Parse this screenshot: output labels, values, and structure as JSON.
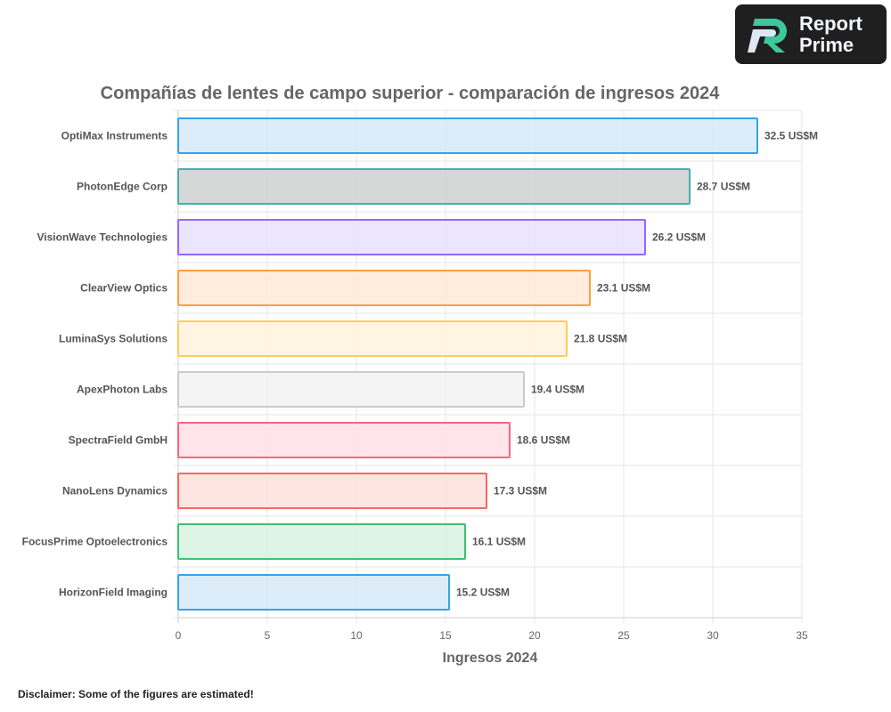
{
  "logo": {
    "line1": "Report",
    "line2": "Prime"
  },
  "disclaimer": "Disclaimer: Some of the figures are estimated!",
  "chart_data": {
    "type": "bar",
    "orientation": "horizontal",
    "title": "Compañías de lentes de campo superior - comparación de ingresos 2024",
    "xlabel": "Ingresos 2024",
    "ylabel": "",
    "xlim": [
      0,
      35
    ],
    "xticks": [
      0,
      5,
      10,
      15,
      20,
      25,
      30,
      35
    ],
    "grid": true,
    "value_suffix": " US$M",
    "categories": [
      "OptiMax Instruments",
      "PhotonEdge Corp",
      "VisionWave Technologies",
      "ClearView Optics",
      "LuminaSys Solutions",
      "ApexPhoton Labs",
      "SpectraField GmbH",
      "NanoLens Dynamics",
      "FocusPrime Optoelectronics",
      "HorizonField Imaging"
    ],
    "values": [
      32.5,
      28.7,
      26.2,
      23.1,
      21.8,
      19.4,
      18.6,
      17.3,
      16.1,
      15.2
    ],
    "data_labels": [
      "32.5 US$M",
      "28.7 US$M",
      "26.2 US$M",
      "23.1 US$M",
      "21.8 US$M",
      "19.4 US$M",
      "18.6 US$M",
      "17.3 US$M",
      "16.1 US$M",
      "15.2 US$M"
    ],
    "border_colors": [
      "#36a2eb",
      "#4bacac",
      "#9966ff",
      "#ff9f40",
      "#ffcd56",
      "#c9cbcf",
      "#ff6384",
      "#f56a5a",
      "#3cc26e",
      "#36a2eb"
    ],
    "fill_colors": [
      "#d6eaf8",
      "#cfd0d0",
      "#e8e0ff",
      "#ffe9d6",
      "#fff3dc",
      "#f2f2f2",
      "#ffe0e6",
      "#ffe1dd",
      "#d8f3e2",
      "#d6eaf8"
    ]
  }
}
